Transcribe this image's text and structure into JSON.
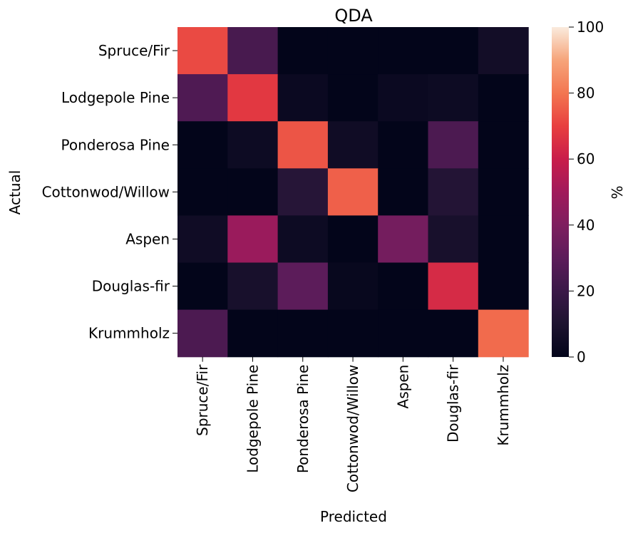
{
  "chart_data": {
    "type": "heatmap",
    "title": "QDA",
    "xlabel": "Predicted",
    "ylabel": "Actual",
    "x_categories": [
      "Spruce/Fir",
      "Lodgepole Pine",
      "Ponderosa Pine",
      "Cottonwod/Willow",
      "Aspen",
      "Douglas-fir",
      "Krummholz"
    ],
    "y_categories": [
      "Spruce/Fir",
      "Lodgepole Pine",
      "Ponderosa Pine",
      "Cottonwod/Willow",
      "Aspen",
      "Douglas-fir",
      "Krummholz"
    ],
    "values": [
      [
        72,
        24,
        0,
        0,
        0,
        0,
        6
      ],
      [
        26,
        68,
        3,
        0,
        3,
        4,
        0
      ],
      [
        0,
        4,
        74,
        5,
        0,
        25,
        0
      ],
      [
        0,
        0,
        13,
        76,
        0,
        12,
        0
      ],
      [
        5,
        48,
        4,
        0,
        37,
        8,
        0
      ],
      [
        0,
        8,
        30,
        2,
        0,
        64,
        0
      ],
      [
        25,
        0,
        0,
        0,
        0,
        0,
        78
      ]
    ],
    "colorbar": {
      "label": "%",
      "range": [
        0,
        100
      ],
      "ticks": [
        "0",
        "20",
        "40",
        "60",
        "80",
        "100"
      ],
      "colormap": "rocket"
    },
    "grid": false
  }
}
